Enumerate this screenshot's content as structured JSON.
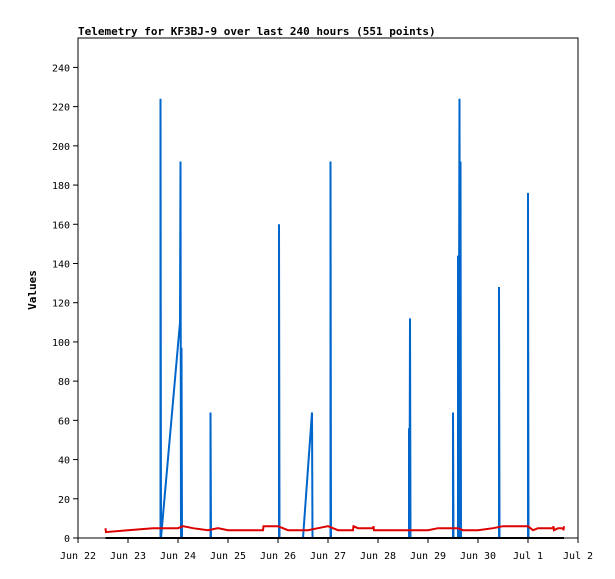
{
  "chart_data": {
    "type": "line",
    "title": "Telemetry for KF3BJ-9 over last 240 hours (551 points)",
    "xlabel": "",
    "ylabel": "Values",
    "ylim": [
      0,
      255
    ],
    "yticks": [
      0,
      20,
      40,
      60,
      80,
      100,
      120,
      140,
      160,
      180,
      200,
      220,
      240
    ],
    "xlim": [
      "2025-06-22",
      "2025-07-02"
    ],
    "xticks": [
      {
        "day": 0,
        "label": "Jun 22"
      },
      {
        "day": 1,
        "label": "Jun 23"
      },
      {
        "day": 2,
        "label": "Jun 24"
      },
      {
        "day": 3,
        "label": "Jun 25"
      },
      {
        "day": 4,
        "label": "Jun 26"
      },
      {
        "day": 5,
        "label": "Jun 27"
      },
      {
        "day": 6,
        "label": "Jun 28"
      },
      {
        "day": 7,
        "label": "Jun 29"
      },
      {
        "day": 8,
        "label": "Jun 30"
      },
      {
        "day": 9,
        "label": "Jul 1"
      },
      {
        "day": 10,
        "label": "Jul 2"
      }
    ],
    "grid": false,
    "legend": "none",
    "series": [
      {
        "color": "#0066cc",
        "segments": [
          [
            [
              1.65,
              0
            ],
            [
              1.65,
              224
            ],
            [
              1.66,
              0
            ]
          ],
          [
            [
              1.66,
              0
            ],
            [
              2.04,
              110
            ],
            [
              2.05,
              192
            ],
            [
              2.06,
              0
            ],
            [
              2.07,
              97
            ],
            [
              2.08,
              0
            ]
          ],
          [
            [
              2.65,
              0
            ],
            [
              2.65,
              64
            ],
            [
              2.66,
              0
            ]
          ],
          [
            [
              4.02,
              0
            ],
            [
              4.02,
              160
            ],
            [
              4.03,
              0
            ]
          ],
          [
            [
              4.5,
              0
            ],
            [
              4.68,
              64
            ],
            [
              4.69,
              0
            ]
          ],
          [
            [
              5.05,
              0
            ],
            [
              5.05,
              192
            ],
            [
              5.06,
              0
            ]
          ],
          [
            [
              6.62,
              0
            ],
            [
              6.62,
              56
            ],
            [
              6.63,
              0
            ],
            [
              6.64,
              112
            ],
            [
              6.65,
              0
            ]
          ],
          [
            [
              7.5,
              0
            ],
            [
              7.5,
              64
            ],
            [
              7.51,
              0
            ]
          ],
          [
            [
              7.6,
              0
            ],
            [
              7.6,
              144
            ],
            [
              7.61,
              0
            ],
            [
              7.63,
              224
            ],
            [
              7.64,
              0
            ],
            [
              7.65,
              192
            ],
            [
              7.66,
              0
            ]
          ],
          [
            [
              8.42,
              0
            ],
            [
              8.42,
              128
            ],
            [
              8.43,
              0
            ]
          ],
          [
            [
              9.0,
              0
            ],
            [
              9.0,
              176
            ],
            [
              9.01,
              0
            ]
          ]
        ]
      },
      {
        "color": "#dd0000",
        "segments": [
          [
            [
              0.55,
              5
            ],
            [
              0.56,
              3
            ],
            [
              1.0,
              4
            ],
            [
              1.5,
              5
            ],
            [
              2.0,
              5
            ],
            [
              2.1,
              6
            ],
            [
              2.3,
              5
            ],
            [
              2.6,
              4
            ],
            [
              2.8,
              5
            ],
            [
              3.0,
              4
            ],
            [
              3.5,
              4
            ],
            [
              3.7,
              4
            ],
            [
              3.71,
              6
            ],
            [
              4.0,
              6
            ],
            [
              4.2,
              4
            ],
            [
              4.6,
              4
            ],
            [
              4.8,
              5
            ],
            [
              5.0,
              6
            ],
            [
              5.2,
              4
            ],
            [
              5.5,
              4
            ],
            [
              5.51,
              6
            ],
            [
              5.6,
              5
            ],
            [
              5.9,
              5
            ],
            [
              5.91,
              6
            ],
            [
              5.92,
              4
            ],
            [
              6.5,
              4
            ],
            [
              7.0,
              4
            ],
            [
              7.2,
              5
            ],
            [
              7.6,
              5
            ],
            [
              7.7,
              4
            ],
            [
              8.0,
              4
            ],
            [
              8.3,
              5
            ],
            [
              8.5,
              6
            ],
            [
              9.0,
              6
            ],
            [
              9.1,
              4
            ],
            [
              9.2,
              5
            ],
            [
              9.5,
              5
            ],
            [
              9.51,
              6
            ],
            [
              9.52,
              4
            ],
            [
              9.6,
              5
            ],
            [
              9.7,
              5
            ],
            [
              9.71,
              4
            ],
            [
              9.72,
              6
            ]
          ]
        ]
      },
      {
        "color": "#000000",
        "segments": [
          [
            [
              0.55,
              0
            ],
            [
              9.72,
              0
            ]
          ]
        ]
      }
    ]
  }
}
